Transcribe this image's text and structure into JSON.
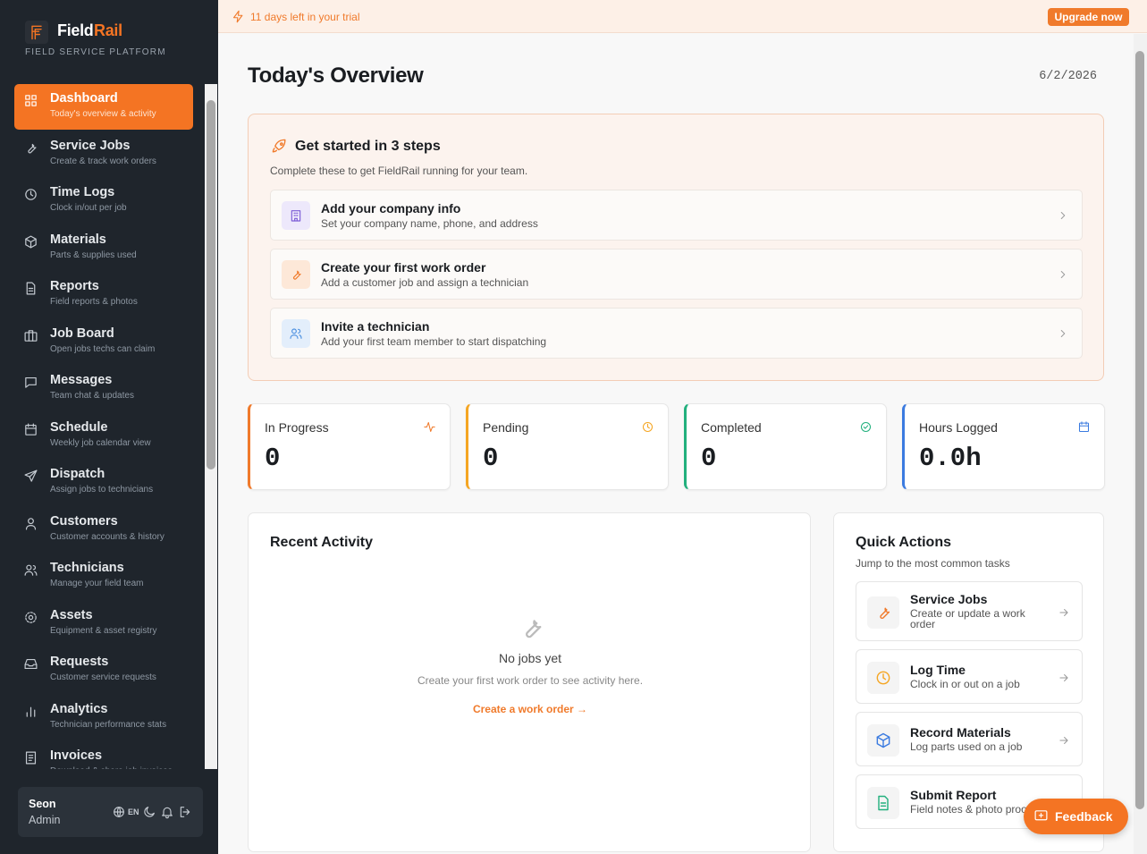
{
  "brand": {
    "name_part1": "Field",
    "name_part2": "Rail",
    "tagline": "FIELD SERVICE PLATFORM"
  },
  "nav": [
    {
      "label": "Dashboard",
      "sub": "Today's overview & activity",
      "active": true
    },
    {
      "label": "Service Jobs",
      "sub": "Create & track work orders"
    },
    {
      "label": "Time Logs",
      "sub": "Clock in/out per job"
    },
    {
      "label": "Materials",
      "sub": "Parts & supplies used"
    },
    {
      "label": "Reports",
      "sub": "Field reports & photos"
    },
    {
      "label": "Job Board",
      "sub": "Open jobs techs can claim"
    },
    {
      "label": "Messages",
      "sub": "Team chat & updates"
    },
    {
      "label": "Schedule",
      "sub": "Weekly job calendar view"
    },
    {
      "label": "Dispatch",
      "sub": "Assign jobs to technicians"
    },
    {
      "label": "Customers",
      "sub": "Customer accounts & history"
    },
    {
      "label": "Technicians",
      "sub": "Manage your field team"
    },
    {
      "label": "Assets",
      "sub": "Equipment & asset registry"
    },
    {
      "label": "Requests",
      "sub": "Customer service requests"
    },
    {
      "label": "Analytics",
      "sub": "Technician performance stats"
    },
    {
      "label": "Invoices",
      "sub": "Download & share job invoices"
    }
  ],
  "user": {
    "name": "Seon",
    "role": "Admin",
    "language": "EN"
  },
  "trial": {
    "text": "11 days left in your trial",
    "button": "Upgrade now"
  },
  "header": {
    "title": "Today's Overview",
    "date": "6/2/2026"
  },
  "get_started": {
    "title": "Get started in 3 steps",
    "subtitle": "Complete these to get FieldRail running for your team.",
    "steps": [
      {
        "title": "Add your company info",
        "sub": "Set your company name, phone, and address",
        "color": "#7c5cd6",
        "tint": "#ede8fb"
      },
      {
        "title": "Create your first work order",
        "sub": "Add a customer job and assign a technician",
        "color": "#f07a2b",
        "tint": "#fde8d8"
      },
      {
        "title": "Invite a technician",
        "sub": "Add your first team member to start dispatching",
        "color": "#4a8fe0",
        "tint": "#e3eefb"
      }
    ]
  },
  "stats": [
    {
      "label": "In Progress",
      "value": 0,
      "color": "#f07a2b"
    },
    {
      "label": "Pending",
      "value": 0,
      "color": "#f5a623"
    },
    {
      "label": "Completed",
      "value": 0,
      "color": "#22b07d"
    },
    {
      "label": "Hours Logged",
      "value": "0.0h",
      "color": "#3b7be0"
    }
  ],
  "recent_activity": {
    "title": "Recent Activity",
    "empty_title": "No jobs yet",
    "empty_sub": "Create your first work order to see activity here.",
    "link": "Create a work order →"
  },
  "quick_actions": {
    "title": "Quick Actions",
    "subtitle": "Jump to the most common tasks",
    "items": [
      {
        "title": "Service Jobs",
        "sub": "Create or update a work order",
        "color": "#f07a2b"
      },
      {
        "title": "Log Time",
        "sub": "Clock in or out on a job",
        "color": "#f5a623"
      },
      {
        "title": "Record Materials",
        "sub": "Log parts used on a job",
        "color": "#3b7be0"
      },
      {
        "title": "Submit Report",
        "sub": "Field notes & photo proof",
        "color": "#22b07d"
      }
    ]
  },
  "feedback": "Feedback"
}
